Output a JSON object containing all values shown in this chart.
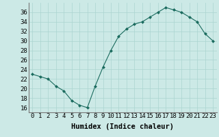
{
  "x": [
    0,
    1,
    2,
    3,
    4,
    5,
    6,
    7,
    8,
    9,
    10,
    11,
    12,
    13,
    14,
    15,
    16,
    17,
    18,
    19,
    20,
    21,
    22,
    23
  ],
  "y": [
    23,
    22.5,
    22,
    20.5,
    19.5,
    17.5,
    16.5,
    16,
    20.5,
    24.5,
    28,
    31,
    32.5,
    33.5,
    34,
    35,
    36,
    37,
    36.5,
    36,
    35,
    34,
    31.5,
    30
  ],
  "line_color": "#1a6b5e",
  "marker_color": "#1a6b5e",
  "bg_color": "#cce9e6",
  "grid_color": "#aad4d0",
  "xlabel": "Humidex (Indice chaleur)",
  "xlabel_fontsize": 7.5,
  "tick_fontsize": 6.5,
  "ylim": [
    15,
    38
  ],
  "yticks": [
    16,
    18,
    20,
    22,
    24,
    26,
    28,
    30,
    32,
    34,
    36
  ],
  "xticks": [
    0,
    1,
    2,
    3,
    4,
    5,
    6,
    7,
    8,
    9,
    10,
    11,
    12,
    13,
    14,
    15,
    16,
    17,
    18,
    19,
    20,
    21,
    22,
    23
  ]
}
